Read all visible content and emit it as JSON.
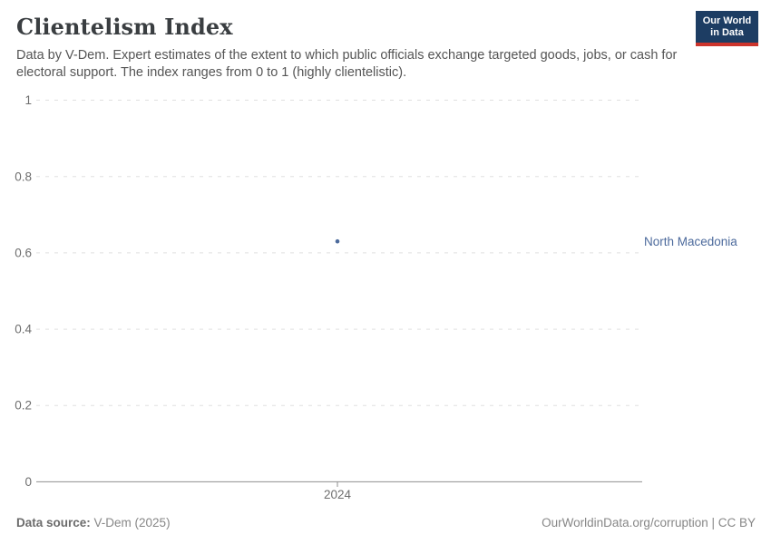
{
  "header": {
    "title": "Clientelism Index",
    "subtitle": "Data by V-Dem. Expert estimates of the extent to which public officials exchange targeted goods, jobs, or cash for electoral support. The index ranges from 0 to 1 (highly clientelistic).",
    "logo": {
      "line1": "Our World",
      "line2": "in Data"
    }
  },
  "chart_data": {
    "type": "scatter",
    "title": "Clientelism Index",
    "series": [
      {
        "name": "North Macedonia",
        "points": [
          {
            "x": 2024,
            "y": 0.63
          }
        ]
      }
    ],
    "xlabel": "",
    "ylabel": "",
    "xlim": [
      2024,
      2024
    ],
    "ylim": [
      0,
      1
    ],
    "x_tick_labels": [
      "2024"
    ],
    "y_tick_labels": [
      "1",
      "0.8",
      "0.6",
      "0.4",
      "0.2",
      "0"
    ],
    "grid": "horizontal-dashed",
    "legend_position": "entity-label-right",
    "point_color": "#4c6a9c",
    "entity_label_color": "#4c6a9c"
  },
  "footer": {
    "source_label": "Data source:",
    "source_value": " V-Dem (2025)",
    "credit": "OurWorldinData.org/corruption | CC BY"
  },
  "colors": {
    "accent_blue": "#4c6a9c",
    "logo_navy": "#1d3d63",
    "logo_red": "#cc342c",
    "grid_line": "#e0e0e0",
    "axis_line": "#8f8f8f",
    "tick_text": "#6e6e6e"
  }
}
